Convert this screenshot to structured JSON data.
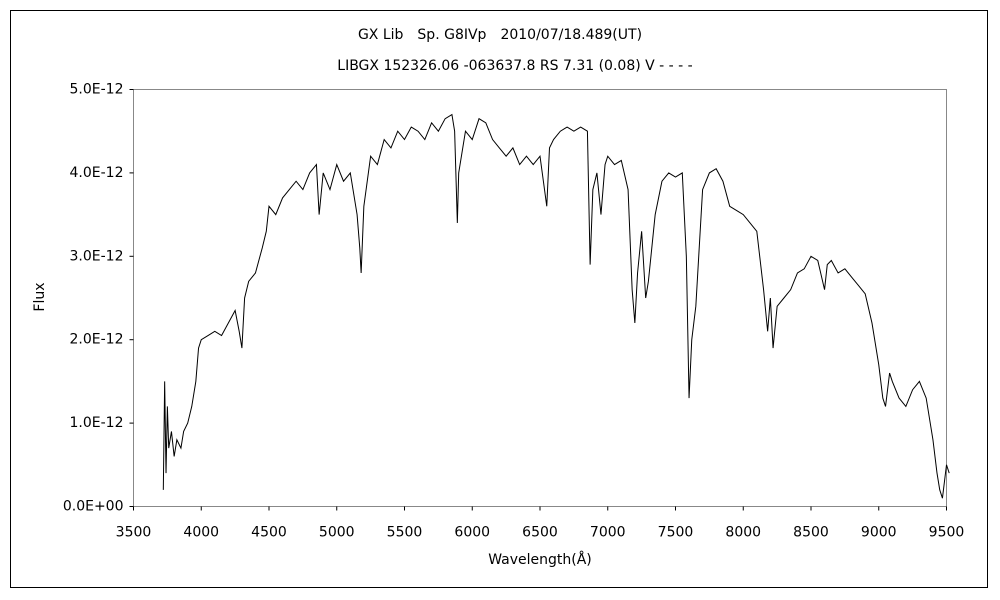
{
  "chart_data": {
    "type": "line",
    "title": "GX Lib　Sp. G8IVp　2010/07/18.489(UT)",
    "subtitle": "LIBGX 152326.06 -063637.8 RS 7.31 (0.08) V - - - -",
    "xlabel": "Wavelength(Å)",
    "ylabel": "Flux",
    "color": "#000000",
    "xlim": [
      3500,
      9500
    ],
    "xticks": [
      3500,
      4000,
      4500,
      5000,
      5500,
      6000,
      6500,
      7000,
      7500,
      8000,
      8500,
      9000,
      9500
    ],
    "ylim": [
      0,
      5e-12
    ],
    "yticks": [
      {
        "value": 0,
        "label": "0.0E+00"
      },
      {
        "value": 1e-12,
        "label": "1.0E-12"
      },
      {
        "value": 2e-12,
        "label": "2.0E-12"
      },
      {
        "value": 3e-12,
        "label": "3.0E-12"
      },
      {
        "value": 4e-12,
        "label": "4.0E-12"
      },
      {
        "value": 5e-12,
        "label": "5.0E-12"
      }
    ],
    "x": [
      3720,
      3730,
      3740,
      3750,
      3760,
      3780,
      3800,
      3820,
      3850,
      3870,
      3900,
      3930,
      3960,
      3980,
      4000,
      4050,
      4100,
      4150,
      4200,
      4250,
      4280,
      4300,
      4320,
      4350,
      4400,
      4450,
      4480,
      4500,
      4550,
      4600,
      4650,
      4700,
      4750,
      4800,
      4850,
      4870,
      4900,
      4950,
      5000,
      5050,
      5100,
      5150,
      5170,
      5180,
      5200,
      5250,
      5300,
      5350,
      5400,
      5450,
      5500,
      5550,
      5600,
      5650,
      5700,
      5750,
      5800,
      5850,
      5870,
      5890,
      5900,
      5950,
      6000,
      6050,
      6100,
      6150,
      6200,
      6250,
      6300,
      6350,
      6400,
      6450,
      6500,
      6550,
      6570,
      6600,
      6650,
      6700,
      6750,
      6800,
      6850,
      6870,
      6890,
      6920,
      6950,
      6980,
      7000,
      7050,
      7100,
      7150,
      7180,
      7200,
      7220,
      7250,
      7280,
      7300,
      7350,
      7400,
      7450,
      7500,
      7550,
      7580,
      7600,
      7620,
      7650,
      7700,
      7750,
      7800,
      7850,
      7900,
      7950,
      8000,
      8050,
      8100,
      8150,
      8180,
      8200,
      8220,
      8250,
      8300,
      8350,
      8400,
      8450,
      8500,
      8550,
      8600,
      8620,
      8650,
      8700,
      8750,
      8800,
      8850,
      8900,
      8950,
      9000,
      9030,
      9050,
      9080,
      9100,
      9150,
      9200,
      9250,
      9300,
      9350,
      9400,
      9430,
      9450,
      9470,
      9500,
      9520
    ],
    "values": [
      2e-13,
      1.5e-12,
      4e-13,
      1.2e-12,
      7e-13,
      9e-13,
      6e-13,
      8e-13,
      7e-13,
      9e-13,
      1e-12,
      1.2e-12,
      1.5e-12,
      1.9e-12,
      2e-12,
      2.05e-12,
      2.1e-12,
      2.05e-12,
      2.2e-12,
      2.35e-12,
      2.1e-12,
      1.9e-12,
      2.5e-12,
      2.7e-12,
      2.8e-12,
      3.1e-12,
      3.3e-12,
      3.6e-12,
      3.5e-12,
      3.7e-12,
      3.8e-12,
      3.9e-12,
      3.8e-12,
      4e-12,
      4.1e-12,
      3.5e-12,
      4e-12,
      3.8e-12,
      4.1e-12,
      3.9e-12,
      4e-12,
      3.5e-12,
      3.1e-12,
      2.8e-12,
      3.6e-12,
      4.2e-12,
      4.1e-12,
      4.4e-12,
      4.3e-12,
      4.5e-12,
      4.4e-12,
      4.55e-12,
      4.5e-12,
      4.4e-12,
      4.6e-12,
      4.5e-12,
      4.65e-12,
      4.7e-12,
      4.5e-12,
      3.4e-12,
      4e-12,
      4.5e-12,
      4.4e-12,
      4.65e-12,
      4.6e-12,
      4.4e-12,
      4.3e-12,
      4.2e-12,
      4.3e-12,
      4.1e-12,
      4.2e-12,
      4.1e-12,
      4.2e-12,
      3.6e-12,
      4.3e-12,
      4.4e-12,
      4.5e-12,
      4.55e-12,
      4.5e-12,
      4.55e-12,
      4.5e-12,
      2.9e-12,
      3.8e-12,
      4e-12,
      3.5e-12,
      4.1e-12,
      4.2e-12,
      4.1e-12,
      4.15e-12,
      3.8e-12,
      2.6e-12,
      2.2e-12,
      2.8e-12,
      3.3e-12,
      2.5e-12,
      2.7e-12,
      3.5e-12,
      3.9e-12,
      4e-12,
      3.95e-12,
      4e-12,
      3e-12,
      1.3e-12,
      2e-12,
      2.4e-12,
      3.8e-12,
      4e-12,
      4.05e-12,
      3.9e-12,
      3.6e-12,
      3.55e-12,
      3.5e-12,
      3.4e-12,
      3.3e-12,
      2.6e-12,
      2.1e-12,
      2.5e-12,
      1.9e-12,
      2.4e-12,
      2.5e-12,
      2.6e-12,
      2.8e-12,
      2.85e-12,
      3e-12,
      2.95e-12,
      2.6e-12,
      2.9e-12,
      2.95e-12,
      2.8e-12,
      2.85e-12,
      2.75e-12,
      2.65e-12,
      2.55e-12,
      2.2e-12,
      1.7e-12,
      1.3e-12,
      1.2e-12,
      1.6e-12,
      1.5e-12,
      1.3e-12,
      1.2e-12,
      1.4e-12,
      1.5e-12,
      1.3e-12,
      8e-13,
      4e-13,
      2e-13,
      1e-13,
      5e-13,
      4e-13
    ]
  }
}
